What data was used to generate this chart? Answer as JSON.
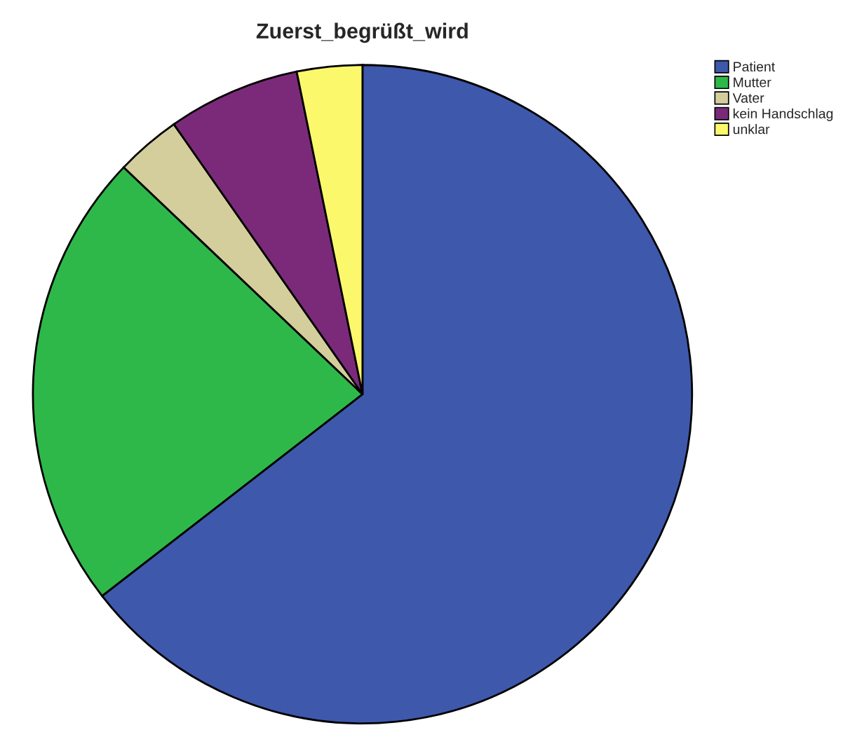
{
  "chart_data": {
    "type": "pie",
    "title": "Zuerst_begrüßt_wird",
    "categories": [
      "Patient",
      "Mutter",
      "Vater",
      "kein Handschlag",
      "unklar"
    ],
    "values": [
      64.5,
      22.6,
      3.2,
      6.5,
      3.2
    ],
    "colors": [
      "#3e58ac",
      "#2fb84a",
      "#d4ce9c",
      "#7b2a7a",
      "#fbf86c"
    ],
    "legend": "top right"
  }
}
